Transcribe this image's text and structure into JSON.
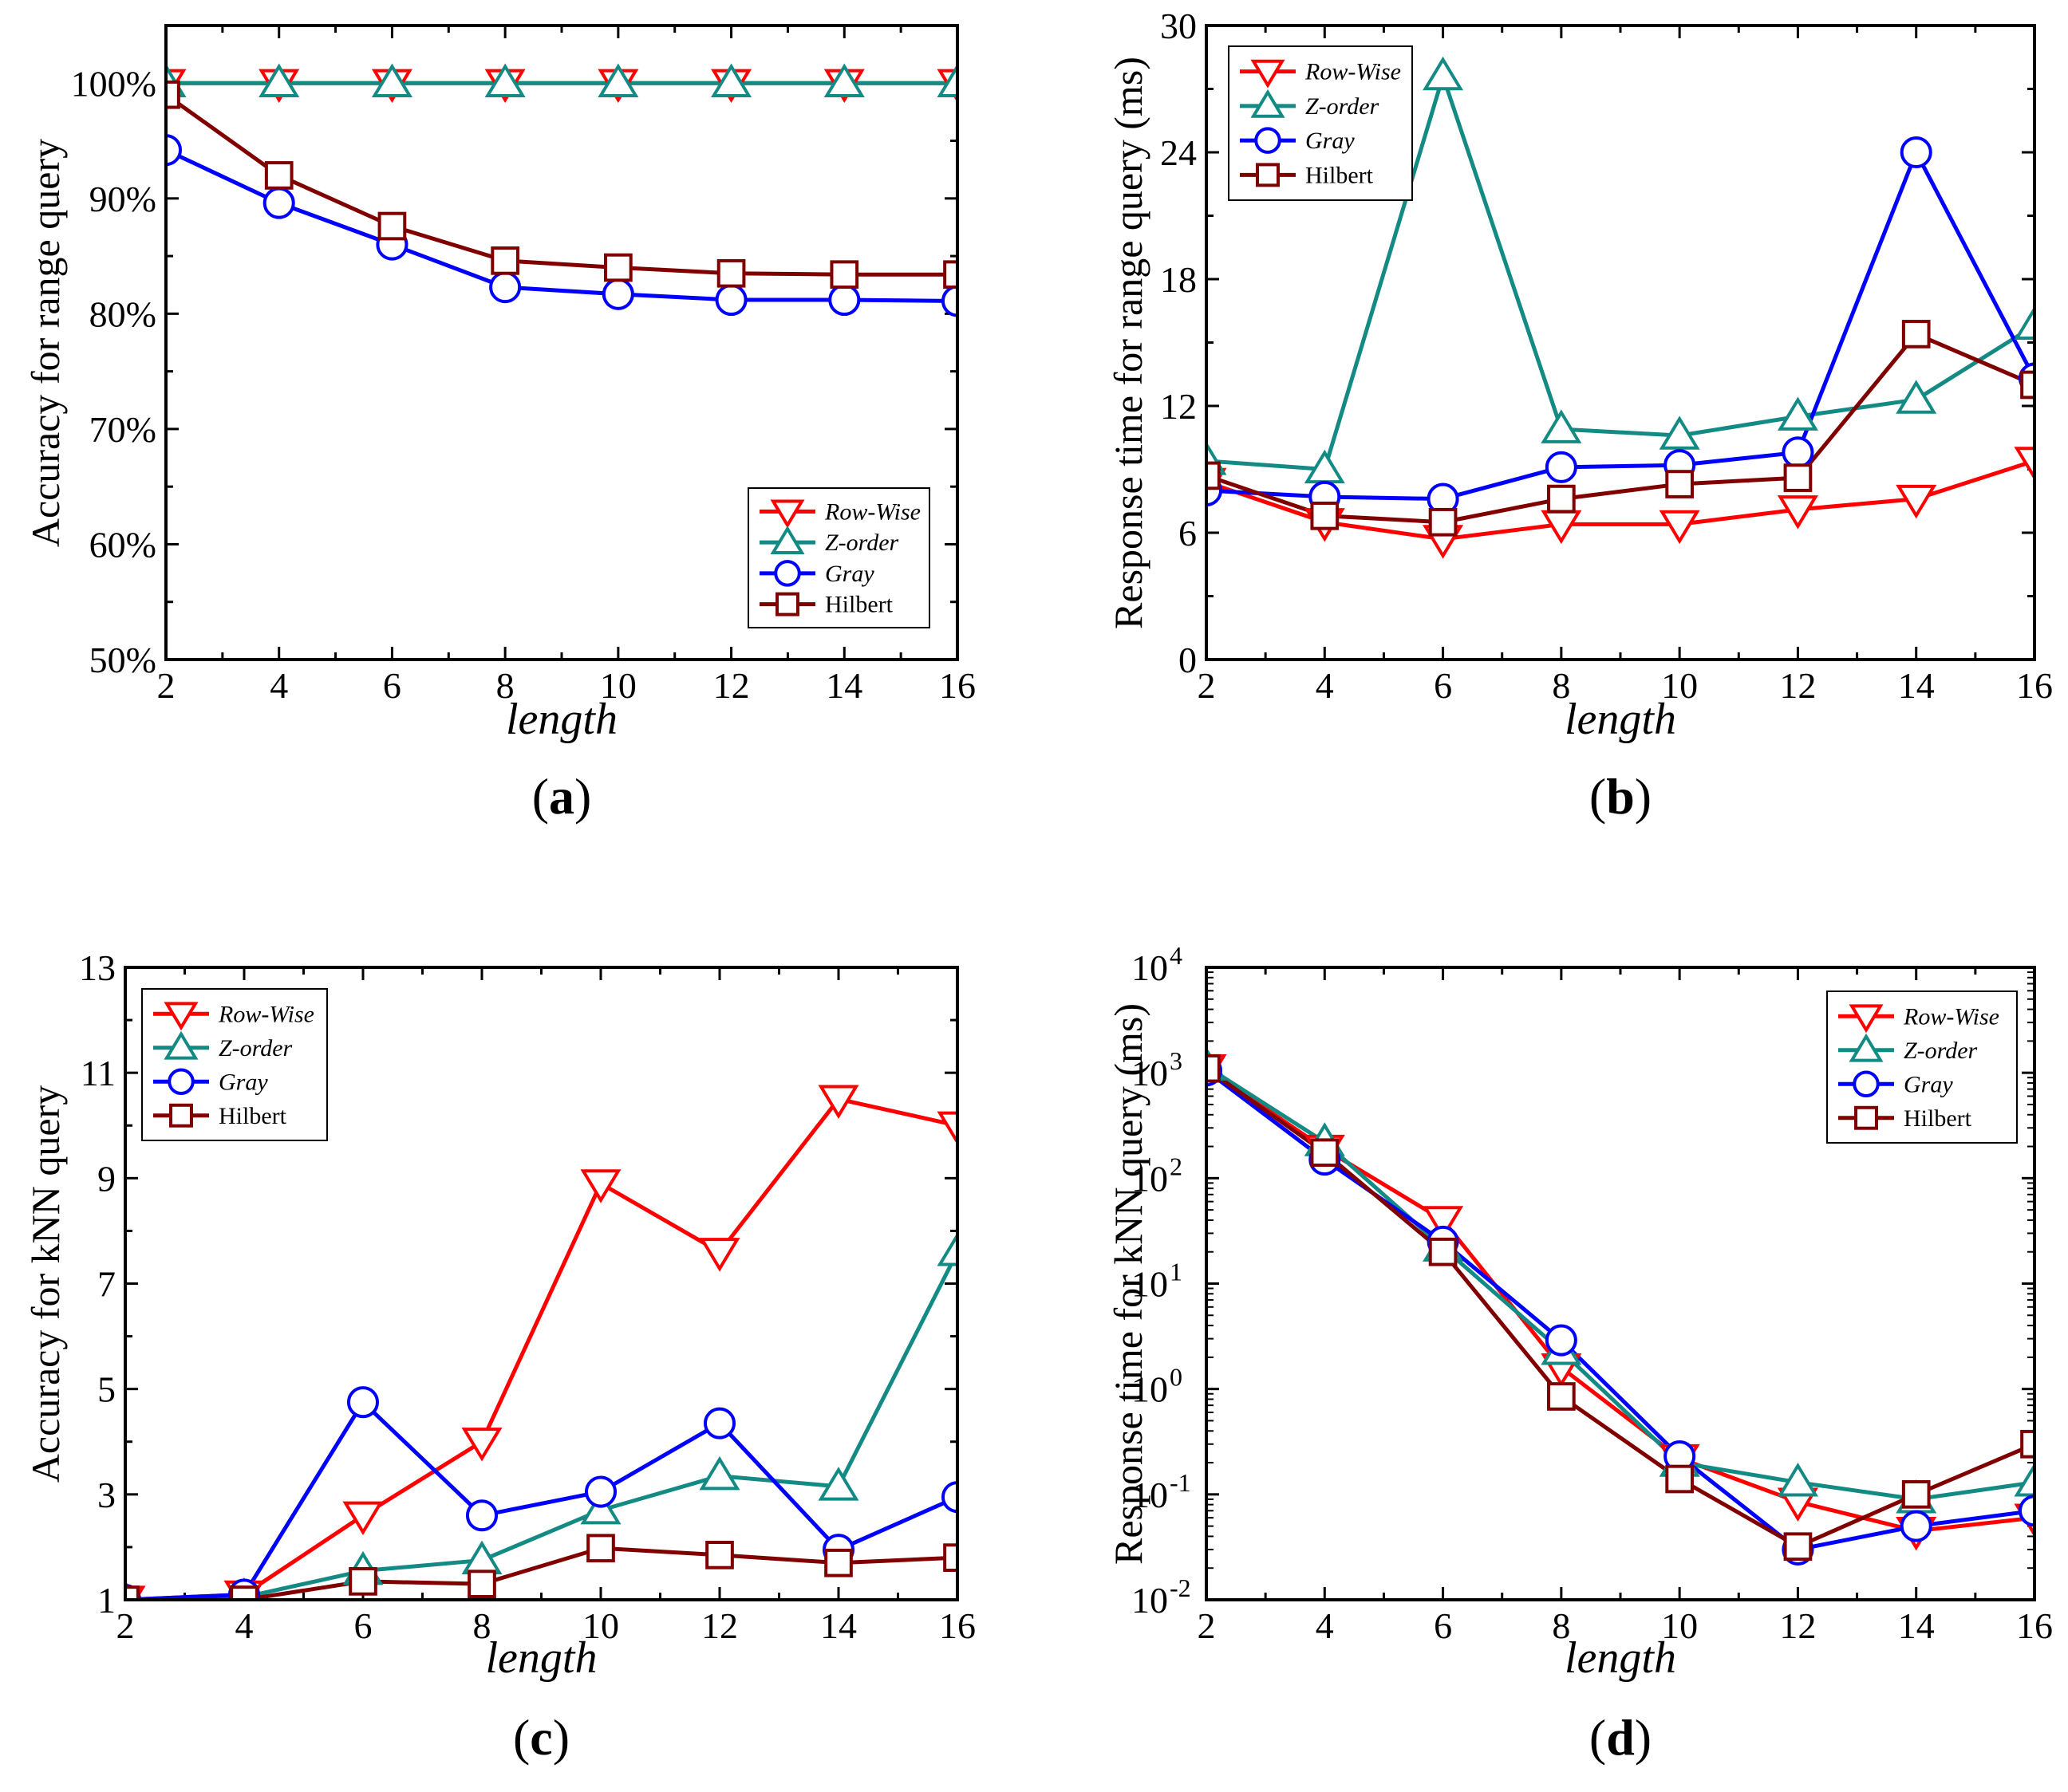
{
  "colors": {
    "Row-Wise": "#ff0000",
    "Z-order": "#138a84",
    "Gray": "#0000ff",
    "Hilbert": "#800000"
  },
  "chart_data": [
    {
      "type": "line",
      "panel_label": "a",
      "xlabel": "length",
      "ylabel": "Accuracy for range query",
      "x": [
        2,
        4,
        6,
        8,
        10,
        12,
        14,
        16
      ],
      "xticks": [
        "2",
        "4",
        "6",
        "8",
        "10",
        "12",
        "14",
        "16"
      ],
      "ylim": [
        50,
        105
      ],
      "yscale": "linear",
      "yticks": [
        50,
        60,
        70,
        80,
        90,
        100
      ],
      "ytick_labels": [
        "50%",
        "60%",
        "70%",
        "80%",
        "90%",
        "100%"
      ],
      "legend_position": "bottom-right",
      "series": [
        {
          "name": "Row-Wise",
          "marker": "triangle-down",
          "values": [
            100,
            100,
            100,
            100,
            100,
            100,
            100,
            100
          ]
        },
        {
          "name": "Z-order",
          "marker": "triangle-up",
          "values": [
            100,
            100,
            100,
            100,
            100,
            100,
            100,
            100
          ]
        },
        {
          "name": "Gray",
          "marker": "circle",
          "values": [
            94.2,
            89.6,
            86.0,
            82.3,
            81.7,
            81.2,
            81.2,
            81.1
          ]
        },
        {
          "name": "Hilbert",
          "marker": "square",
          "values": [
            99.0,
            92.0,
            87.6,
            84.6,
            84.0,
            83.5,
            83.4,
            83.4
          ]
        }
      ]
    },
    {
      "type": "line",
      "panel_label": "b",
      "xlabel": "length",
      "ylabel": "Response time for range query (ms)",
      "x": [
        2,
        4,
        6,
        8,
        10,
        12,
        14,
        16
      ],
      "xticks": [
        "2",
        "4",
        "6",
        "8",
        "10",
        "12",
        "14",
        "16"
      ],
      "ylim": [
        0,
        30
      ],
      "yscale": "linear",
      "yticks": [
        0,
        6,
        12,
        18,
        24,
        30
      ],
      "ytick_labels": [
        "0",
        "6",
        "12",
        "18",
        "24",
        "30"
      ],
      "legend_position": "top-left",
      "series": [
        {
          "name": "Row-Wise",
          "marker": "triangle-down",
          "values": [
            8.4,
            6.5,
            5.7,
            6.4,
            6.4,
            7.1,
            7.6,
            9.4
          ]
        },
        {
          "name": "Z-order",
          "marker": "triangle-up",
          "values": [
            9.4,
            9.0,
            27.6,
            10.9,
            10.6,
            11.5,
            12.3,
            15.8
          ]
        },
        {
          "name": "Gray",
          "marker": "circle",
          "values": [
            8.0,
            7.7,
            7.6,
            9.1,
            9.2,
            9.8,
            24.0,
            13.3
          ]
        },
        {
          "name": "Hilbert",
          "marker": "square",
          "values": [
            8.7,
            6.8,
            6.5,
            7.6,
            8.3,
            8.6,
            15.4,
            13.0
          ]
        }
      ]
    },
    {
      "type": "line",
      "panel_label": "c",
      "xlabel": "length",
      "ylabel": "Accuracy for kNN query",
      "x": [
        2,
        4,
        6,
        8,
        10,
        12,
        14,
        16
      ],
      "xticks": [
        "2",
        "4",
        "6",
        "8",
        "10",
        "12",
        "14",
        "16"
      ],
      "ylim": [
        1,
        13
      ],
      "yscale": "linear",
      "yticks": [
        1,
        3,
        5,
        7,
        9,
        11,
        13
      ],
      "ytick_labels": [
        "1",
        "3",
        "5",
        "7",
        "9",
        "11",
        "13"
      ],
      "legend_position": "top-left",
      "series": [
        {
          "name": "Row-Wise",
          "marker": "triangle-down",
          "values": [
            1.0,
            1.1,
            2.6,
            4.0,
            8.9,
            7.6,
            10.5,
            10.0
          ]
        },
        {
          "name": "Z-order",
          "marker": "triangle-up",
          "values": [
            1.0,
            1.05,
            1.55,
            1.75,
            2.7,
            3.35,
            3.15,
            7.6
          ]
        },
        {
          "name": "Gray",
          "marker": "circle",
          "values": [
            1.0,
            1.1,
            4.75,
            2.6,
            3.05,
            4.35,
            1.95,
            2.95
          ]
        },
        {
          "name": "Hilbert",
          "marker": "square",
          "values": [
            1.0,
            1.0,
            1.35,
            1.3,
            1.98,
            1.85,
            1.7,
            1.8
          ]
        }
      ]
    },
    {
      "type": "line",
      "panel_label": "d",
      "xlabel": "length",
      "ylabel": "Response time for kNN query (ms)",
      "x": [
        2,
        4,
        6,
        8,
        10,
        12,
        14,
        16
      ],
      "xticks": [
        "2",
        "4",
        "6",
        "8",
        "10",
        "12",
        "14",
        "16"
      ],
      "ylim": [
        0.01,
        10000
      ],
      "yscale": "log",
      "yticks": [
        0.01,
        0.1,
        1,
        10,
        100,
        1000,
        10000
      ],
      "ytick_exponents": [
        "-2",
        "-1",
        "0",
        "1",
        "2",
        "3",
        "4"
      ],
      "ytick_base": "10",
      "legend_position": "top-right",
      "series": [
        {
          "name": "Row-Wise",
          "marker": "triangle-down",
          "values": [
            1100,
            190,
            40,
            1.6,
            0.22,
            0.085,
            0.045,
            0.06
          ]
        },
        {
          "name": "Z-order",
          "marker": "triangle-up",
          "values": [
            1150,
            220,
            22,
            2.3,
            0.2,
            0.13,
            0.09,
            0.13
          ]
        },
        {
          "name": "Gray",
          "marker": "circle",
          "values": [
            1050,
            150,
            25,
            2.9,
            0.23,
            0.03,
            0.05,
            0.07
          ]
        },
        {
          "name": "Hilbert",
          "marker": "square",
          "values": [
            1100,
            175,
            20,
            0.85,
            0.14,
            0.032,
            0.1,
            0.3
          ]
        }
      ]
    }
  ]
}
